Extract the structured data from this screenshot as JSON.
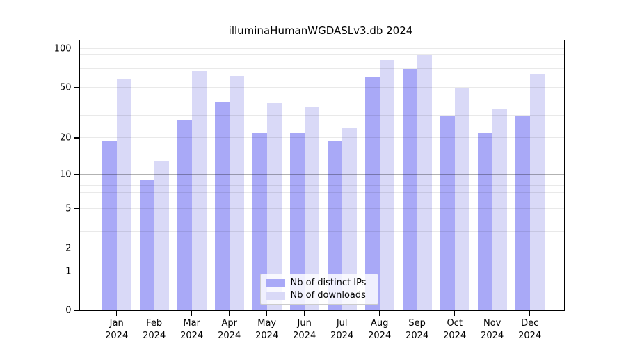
{
  "title": "illuminaHumanWGDASLv3.db 2024",
  "axes": {
    "y_tick_labels": [
      "0",
      "1",
      "2",
      "5",
      "10",
      "20",
      "50",
      "100"
    ],
    "x_year_label": "2024"
  },
  "chart_data": {
    "type": "bar",
    "title": "illuminaHumanWGDASLv3.db 2024",
    "categories": [
      "Jan",
      "Feb",
      "Mar",
      "Apr",
      "May",
      "Jun",
      "Jul",
      "Aug",
      "Sep",
      "Oct",
      "Nov",
      "Dec"
    ],
    "category_year": "2024",
    "series": [
      {
        "name": "Nb of distinct IPs",
        "color": "#a9a9f7",
        "values": [
          19,
          9,
          28,
          39,
          22,
          22,
          19,
          61,
          70,
          30,
          22,
          30
        ]
      },
      {
        "name": "Nb of downloads",
        "color": "#d9d9f7",
        "values": [
          59,
          13,
          67,
          62,
          38,
          35,
          24,
          82,
          90,
          49,
          34,
          63
        ]
      }
    ],
    "yscale": "log1p",
    "yticks": [
      0,
      1,
      2,
      5,
      10,
      20,
      50,
      100
    ],
    "grid_minor": [
      2,
      3,
      4,
      5,
      6,
      7,
      8,
      9,
      20,
      30,
      40,
      50,
      60,
      70,
      80,
      90,
      100
    ],
    "grid_major": [
      1,
      10
    ],
    "ylim": [
      0,
      115
    ],
    "legend_position": "bottom-center",
    "bar_color_dark": "#a9a9f7",
    "bar_color_light": "#d9d9f7"
  }
}
